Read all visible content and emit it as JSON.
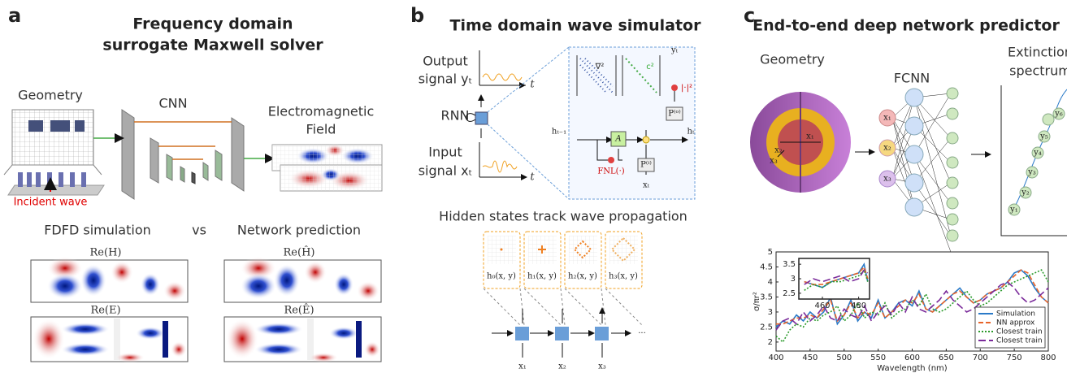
{
  "panel_a": {
    "label": "a",
    "title": [
      "Frequency domain",
      "surrogate Maxwell solver"
    ],
    "geometry": "Geometry",
    "cnn": "CNN",
    "field": [
      "Electromagnetic",
      "Field"
    ],
    "incident": "Incident wave",
    "compare": [
      "FDFD simulation",
      "vs",
      "Network prediction"
    ],
    "maps": [
      "Re(H)",
      "Re(Ĥ)",
      "Re(E)",
      "Re(Ê)"
    ]
  },
  "panel_b": {
    "label": "b",
    "title": "Time domain wave simulator",
    "output": [
      "Output",
      "signal yₜ"
    ],
    "rnn": "RNN",
    "input": [
      "Input",
      "signal xₜ"
    ],
    "axis_t": "t",
    "cell": {
      "laplacian": "∇²",
      "c2": "c²",
      "a": "A",
      "fnl": "FNL(·)",
      "p_out": "P⁽ᵒ⁾",
      "p_in": "P⁽ⁱ⁾",
      "abs2": "|·|²",
      "y_t": "yₜ",
      "x_t": "xₜ",
      "h_prev": "hₜ₋₁",
      "h_t": "hₜ"
    },
    "hidden": "Hidden states track wave propagation",
    "states": [
      "h₀(x, y)",
      "h₁(x, y)",
      "h₂(x, y)",
      "h₃(x, y)"
    ],
    "inputs": [
      "x₁",
      "x₂",
      "x₃"
    ],
    "ellipsis": "···"
  },
  "panel_c": {
    "label": "c",
    "title": "End-to-end deep network predictor",
    "geometry": "Geometry",
    "fcnn": "FCNN",
    "spectrum": [
      "Extinction",
      "spectrum"
    ],
    "radii": [
      "x₁",
      "x₂",
      "x₃"
    ],
    "inputs": [
      "x₁",
      "x₂",
      "x₃"
    ],
    "outputs": [
      "y₁",
      "y₂",
      "y₃",
      "y₄",
      "y₅",
      "y₆"
    ]
  },
  "chart_data": [
    {
      "type": "line",
      "xlabel": "Wavelength (nm)",
      "ylabel": "σ/πr²",
      "legend": "lower right",
      "xlim": [
        400,
        800
      ],
      "xticks": [
        400,
        450,
        500,
        550,
        600,
        650,
        700,
        750,
        800
      ],
      "ylim": [
        1.7,
        5
      ],
      "yticks": [
        2,
        2.5,
        3,
        3.5,
        4,
        4.5,
        5
      ],
      "x": [
        400,
        410,
        420,
        430,
        440,
        450,
        460,
        470,
        480,
        490,
        500,
        510,
        520,
        530,
        540,
        550,
        560,
        570,
        580,
        590,
        600,
        610,
        620,
        630,
        640,
        650,
        660,
        670,
        680,
        690,
        700,
        710,
        720,
        730,
        740,
        750,
        760,
        770,
        780,
        790,
        800
      ],
      "series": [
        {
          "name": "Simulation",
          "color": "#2a7ac8",
          "dash": "solid",
          "values": [
            2.5,
            2.7,
            2.6,
            2.9,
            2.7,
            3.0,
            2.8,
            3.0,
            3.5,
            2.6,
            2.9,
            3.4,
            2.7,
            3.0,
            2.8,
            3.4,
            2.8,
            3.0,
            3.3,
            3.4,
            3.2,
            3.7,
            3.1,
            3.0,
            3.2,
            3.4,
            3.6,
            3.8,
            3.5,
            3.3,
            3.4,
            3.6,
            3.7,
            3.8,
            4.0,
            4.3,
            4.4,
            4.2,
            3.8,
            3.5,
            3.3
          ]
        },
        {
          "name": "NN approx",
          "color": "#e8642a",
          "dash": "dashed",
          "values": [
            2.6,
            2.6,
            2.7,
            2.8,
            2.8,
            2.9,
            2.8,
            3.1,
            3.4,
            2.7,
            2.9,
            3.3,
            2.8,
            3.0,
            2.9,
            3.3,
            2.8,
            3.0,
            3.2,
            3.4,
            3.3,
            3.6,
            3.1,
            3.0,
            3.2,
            3.4,
            3.6,
            3.7,
            3.5,
            3.3,
            3.4,
            3.6,
            3.7,
            3.8,
            4.0,
            4.2,
            4.4,
            4.3,
            3.9,
            3.5,
            3.3
          ]
        },
        {
          "name": "Closest train",
          "color": "#2a9a2a",
          "dash": "dotted",
          "values": [
            2.2,
            2.0,
            2.4,
            2.6,
            2.5,
            2.8,
            2.7,
            2.9,
            3.0,
            3.2,
            2.7,
            2.9,
            3.3,
            2.8,
            3.0,
            2.9,
            3.3,
            2.8,
            3.0,
            3.1,
            3.4,
            3.2,
            3.6,
            3.1,
            3.0,
            3.1,
            3.3,
            3.5,
            3.7,
            3.4,
            3.2,
            3.3,
            3.5,
            3.7,
            3.9,
            4.0,
            4.1,
            4.2,
            4.3,
            4.4,
            4.0
          ]
        },
        {
          "name": "Closest train",
          "color": "#7a2a9a",
          "dash": "longdash",
          "values": [
            2.4,
            2.7,
            2.8,
            2.6,
            3.0,
            2.7,
            2.9,
            3.2,
            2.8,
            2.7,
            3.1,
            2.9,
            2.8,
            3.2,
            2.7,
            3.0,
            3.2,
            2.9,
            3.3,
            3.0,
            3.5,
            3.1,
            3.0,
            3.2,
            3.4,
            3.7,
            3.4,
            3.2,
            3.0,
            3.1,
            3.3,
            3.5,
            3.7,
            3.9,
            4.0,
            3.8,
            3.5,
            3.3,
            3.4,
            3.6,
            3.8
          ]
        }
      ]
    },
    {
      "type": "line",
      "xlim": [
        447,
        486
      ],
      "xticks": [
        460,
        480
      ],
      "ylim": [
        2.3,
        3.7
      ],
      "yticks": [
        2.5,
        3,
        3.5
      ],
      "x": [
        450,
        455,
        460,
        465,
        470,
        475,
        480,
        483,
        485
      ],
      "series": [
        {
          "color": "#2a7ac8",
          "dash": "solid",
          "values": [
            2.9,
            2.8,
            2.7,
            2.9,
            3.0,
            3.1,
            3.2,
            3.5,
            2.9
          ]
        },
        {
          "color": "#e8642a",
          "dash": "dashed",
          "values": [
            2.9,
            2.8,
            2.8,
            2.9,
            3.0,
            3.1,
            3.2,
            3.4,
            3.0
          ]
        },
        {
          "color": "#2a9a2a",
          "dash": "dotted",
          "values": [
            2.6,
            2.8,
            2.7,
            2.9,
            2.9,
            3.0,
            3.1,
            3.3,
            2.9
          ]
        },
        {
          "color": "#7a2a9a",
          "dash": "longdash",
          "values": [
            2.8,
            3.0,
            2.9,
            3.0,
            3.1,
            2.9,
            3.0,
            3.3,
            3.2
          ]
        }
      ]
    }
  ]
}
